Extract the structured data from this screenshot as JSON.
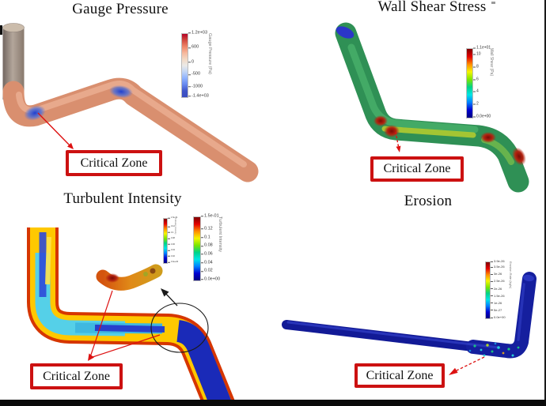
{
  "figure": {
    "background": "#ffffff",
    "border_color": "#0a0a0a"
  },
  "annotation_style": {
    "critical_box_border": "#cc1111",
    "arrow_color": "#dd1111",
    "inset_arrow_color": "#1a1a1a"
  },
  "colormaps": {
    "coolwarm": [
      "#b40426",
      "#d24b40",
      "#ee8568",
      "#f6b89c",
      "#f2d9c4",
      "#ebeae8",
      "#c0d4f5",
      "#8fb2fe",
      "#6788ee",
      "#4055c8",
      "#3b4cc0"
    ],
    "jet": [
      "#7f0000",
      "#e40000",
      "#ff8c00",
      "#f5f500",
      "#7ce600",
      "#00d287",
      "#00e5e5",
      "#0080ff",
      "#0000d0",
      "#000082"
    ]
  },
  "panels": {
    "gauge_pressure": {
      "title": "Gauge Pressure",
      "critical_zone": "Critical Zone",
      "colorbar": {
        "label": "Gauge Pressure (Pa)",
        "colormap": "coolwarm",
        "ticks": [
          "1.2e+03",
          "600",
          "0",
          "-500",
          "-1000",
          "-1.4e+03"
        ]
      }
    },
    "wall_shear": {
      "title": "Wall Shear Stress",
      "critical_zone": "Critical Zone",
      "colorbar": {
        "label": "Wall Shear (Pa)",
        "colormap": "jet",
        "ticks": [
          "1.1e+01",
          "10",
          "8",
          "6",
          "4",
          "2",
          "0.0e+00"
        ]
      }
    },
    "turbulent_intensity": {
      "title": "Turbulent Intensity",
      "critical_zone": "Critical Zone",
      "colorbar": {
        "label": "Turbulent Intensity",
        "colormap": "jet",
        "ticks": [
          "1.5e-01",
          "0.12",
          "0.1",
          "0.08",
          "0.06",
          "0.04",
          "0.02",
          "0.0e+00"
        ]
      },
      "inset_colorbar": {
        "label": "Turbulent Intensity",
        "colormap": "jet",
        "ticks": [
          "1.5e-01",
          "0.12",
          "0.1",
          "0.08",
          "0.06",
          "0.04",
          "0.02",
          "0.0e+00"
        ]
      }
    },
    "erosion": {
      "title": "Erosion",
      "critical_zone": "Critical Zone",
      "colorbar": {
        "label": "Erosion Rate (kg/s)",
        "colormap": "jet",
        "ticks": [
          "3.9e-26",
          "3.5e-26",
          "3e-26",
          "2.5e-26",
          "2e-26",
          "1.5e-26",
          "1e-26",
          "5e-27",
          "0.0e+00"
        ]
      }
    }
  }
}
